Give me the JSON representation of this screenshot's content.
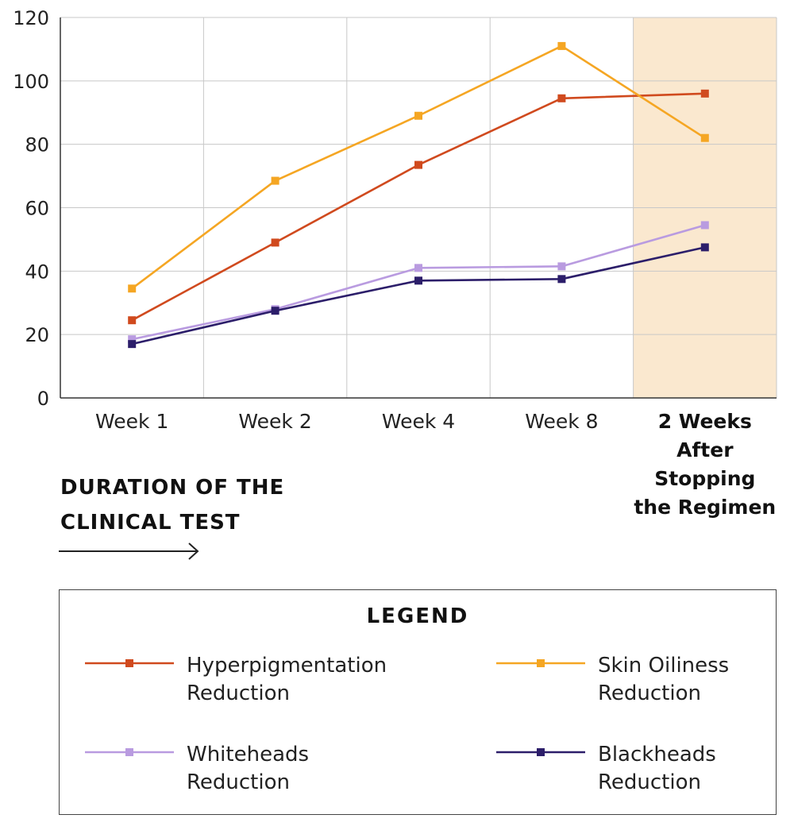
{
  "chart_data": {
    "type": "line",
    "categories": [
      "Week 1",
      "Week 2",
      "Week 4",
      "Week 8",
      "2 Weeks After Stopping the Regimen"
    ],
    "category_lines": [
      [
        "Week 1"
      ],
      [
        "Week 2"
      ],
      [
        "Week 4"
      ],
      [
        "Week 8"
      ],
      [
        "2 Weeks",
        "After",
        "Stopping",
        "the Regimen"
      ]
    ],
    "highlighted_category": "2 Weeks After Stopping the Regimen",
    "highlight_color": "#fae8cf",
    "yticks": [
      "0",
      "20",
      "40",
      "60",
      "80",
      "100",
      "120"
    ],
    "ylim": [
      0,
      120
    ],
    "grid": true,
    "series": [
      {
        "name": "Hyperpigmentation Reduction",
        "label_lines": [
          "Hyperpigmentation",
          "Reduction"
        ],
        "color": "#d04a1e",
        "values": [
          24.5,
          49,
          73.5,
          94.5,
          96
        ]
      },
      {
        "name": "Skin Oiliness Reduction",
        "label_lines": [
          "Skin Oiliness",
          "Reduction"
        ],
        "color": "#f5a623",
        "values": [
          34.5,
          68.5,
          89,
          111,
          82
        ]
      },
      {
        "name": "Whiteheads Reduction",
        "label_lines": [
          "Whiteheads",
          "Reduction"
        ],
        "color": "#b99be0",
        "values": [
          18.5,
          28,
          41,
          41.5,
          54.5
        ]
      },
      {
        "name": "Blackheads Reduction",
        "label_lines": [
          "Blackheads",
          "Reduction"
        ],
        "color": "#2c1e6a",
        "values": [
          17,
          27.5,
          37,
          37.5,
          47.5
        ]
      }
    ]
  },
  "x_axis_caption": {
    "lines": [
      "DURATION OF THE",
      "CLINICAL TEST"
    ],
    "arrow_icon": "right-arrow-icon"
  },
  "legend": {
    "title": "LEGEND",
    "order": [
      0,
      1,
      2,
      3
    ]
  }
}
